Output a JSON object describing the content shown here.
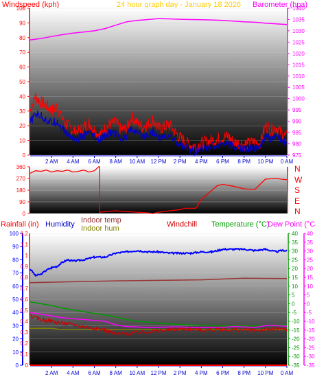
{
  "header": {
    "left_label": "Windspeed (kph)",
    "center_label": "24 hour graph day - January 18 2026",
    "right_label": "Barometer (hpa)"
  },
  "compass": [
    "N",
    "W",
    "S",
    "E",
    "N"
  ],
  "bottom_header": {
    "rainfall": "Rainfall (in)",
    "humidity": "Humidity",
    "indoor_temp": "Indoor temp",
    "indoor_hum": "Indoor hum",
    "windchill": "Windchill",
    "temperature": "Temperature (°C)",
    "dew_point": "Dew Point (°C)"
  },
  "colors": {
    "windspeed": "#ff0000",
    "wind_avg": "#0000cc",
    "barometer": "#ff00ff",
    "title": "#ffcc00",
    "direction": "#ff0000",
    "rain": "#ff0000",
    "humidity": "#0000ff",
    "indoor_temp": "#993333",
    "indoor_hum": "#808000",
    "windchill": "#cc0000",
    "temperature": "#009900",
    "dew_point": "#ff00ff"
  },
  "chart_data": [
    {
      "type": "line",
      "name": "wind-baro",
      "x_ticks": [
        "2 AM",
        "4 AM",
        "6 AM",
        "8 AM",
        "10 AM",
        "12 PM",
        "2 PM",
        "4 PM",
        "6 PM",
        "8 PM",
        "10 PM",
        "0 AM"
      ],
      "ylim_left": [
        0,
        100
      ],
      "yticks_left": [
        0,
        10,
        20,
        30,
        40,
        50,
        60,
        70,
        80,
        90,
        100
      ],
      "ylim_right": [
        975,
        1040
      ],
      "yticks_right": [
        975,
        980,
        985,
        990,
        995,
        1000,
        1005,
        1010,
        1015,
        1020,
        1025,
        1030,
        1035,
        1040
      ],
      "xlim_hours": [
        0,
        24
      ],
      "series": [
        {
          "name": "Windspeed (kph)",
          "color": "#ff0000",
          "axis": "left",
          "x": [
            0,
            0.5,
            1,
            1.5,
            2,
            2.5,
            3,
            3.5,
            4,
            4.5,
            5,
            5.5,
            6,
            6.5,
            7,
            7.5,
            8,
            8.5,
            9,
            9.5,
            10,
            10.5,
            11,
            11.5,
            12,
            12.5,
            13,
            13.5,
            14,
            14.5,
            15,
            15.5,
            16,
            16.5,
            17,
            17.5,
            18,
            18.5,
            19,
            19.5,
            20,
            20.5,
            21,
            21.5,
            22,
            22.5,
            23,
            23.5,
            24
          ],
          "y": [
            30,
            40,
            36,
            34,
            30,
            33,
            25,
            20,
            17,
            16,
            19,
            22,
            17,
            14,
            18,
            21,
            22,
            17,
            18,
            26,
            22,
            19,
            21,
            24,
            18,
            19,
            21,
            16,
            12,
            9,
            7,
            6,
            8,
            9,
            10,
            11,
            12,
            13,
            9,
            8,
            7,
            8,
            9,
            8,
            20,
            17,
            19,
            15,
            12
          ]
        },
        {
          "name": "avg",
          "color": "#0000cc",
          "axis": "left",
          "x": [
            0,
            0.5,
            1,
            1.5,
            2,
            2.5,
            3,
            3.5,
            4,
            4.5,
            5,
            5.5,
            6,
            6.5,
            7,
            7.5,
            8,
            8.5,
            9,
            9.5,
            10,
            10.5,
            11,
            11.5,
            12,
            12.5,
            13,
            13.5,
            14,
            14.5,
            15,
            15.5,
            16,
            16.5,
            17,
            17.5,
            18,
            18.5,
            19,
            19.5,
            20,
            20.5,
            21,
            21.5,
            22,
            22.5,
            23,
            23.5,
            24
          ],
          "y": [
            22,
            28,
            27,
            24,
            22,
            23,
            18,
            14,
            12,
            11,
            13,
            15,
            12,
            10,
            13,
            15,
            15,
            12,
            13,
            18,
            15,
            13,
            14,
            16,
            12,
            12,
            13,
            10,
            7,
            5,
            3,
            3,
            4,
            5,
            6,
            7,
            8,
            8,
            5,
            5,
            4,
            5,
            5,
            5,
            13,
            11,
            13,
            10,
            8
          ]
        },
        {
          "name": "Barometer (hpa)",
          "color": "#ff00ff",
          "axis": "right",
          "x": [
            0,
            1,
            2,
            3,
            4,
            5,
            6,
            7,
            8,
            9,
            10,
            11,
            12,
            13,
            14,
            15,
            16,
            17,
            18,
            19,
            20,
            21,
            22,
            23,
            24
          ],
          "y": [
            1026,
            1026.6,
            1027.5,
            1028.3,
            1029,
            1029.5,
            1030,
            1031,
            1032.5,
            1034,
            1034.6,
            1035,
            1035.4,
            1035.3,
            1035.1,
            1035,
            1034.9,
            1034.8,
            1034.6,
            1034.3,
            1034,
            1033.8,
            1033.4,
            1033.1,
            1032.8
          ]
        }
      ]
    },
    {
      "type": "line",
      "name": "direction",
      "ylim": [
        0,
        360
      ],
      "yticks": [
        0,
        90,
        180,
        270,
        360
      ],
      "xlim_hours": [
        0,
        24
      ],
      "series": [
        {
          "name": "Wind direction",
          "color": "#ff0000",
          "x": [
            0,
            0.5,
            1,
            1.5,
            2,
            2.5,
            3,
            3.5,
            4,
            4.5,
            5,
            5.5,
            6,
            6.4,
            6.5,
            7,
            8,
            9,
            10,
            11,
            11.5,
            12,
            13,
            14,
            14.5,
            15,
            15.5,
            16,
            17,
            17.5,
            18,
            19,
            20,
            21,
            22,
            23,
            24
          ],
          "y": [
            310,
            330,
            325,
            335,
            320,
            330,
            325,
            335,
            320,
            325,
            335,
            320,
            330,
            360,
            10,
            15,
            20,
            15,
            10,
            5,
            0,
            10,
            20,
            30,
            40,
            40,
            40,
            110,
            180,
            215,
            225,
            210,
            190,
            185,
            265,
            270,
            260
          ]
        }
      ]
    },
    {
      "type": "line",
      "name": "temp-hum",
      "rain_yticks": [
        "0",
        "0.1",
        "0.2",
        "0.3",
        "0.4",
        "0.5",
        "0.6",
        "0.7",
        "0.8",
        "0.9",
        "1",
        "1.1",
        "1.2"
      ],
      "rain_ylim": [
        0,
        1.2
      ],
      "hum_ylim": [
        0,
        100
      ],
      "hum_yticks": [
        "0",
        "10",
        "20",
        "30",
        "40",
        "50",
        "60",
        "70",
        "80",
        "90",
        "100"
      ],
      "temp_ylim": [
        -35,
        40
      ],
      "temp_yticks": [
        "-35",
        "-30",
        "-25",
        "-20",
        "-15",
        "-10",
        "-5",
        "0",
        "5",
        "10",
        "15",
        "20",
        "25",
        "30",
        "35",
        "40"
      ],
      "xlim_hours": [
        0,
        24
      ],
      "series": [
        {
          "name": "Humidity",
          "color": "#0000ff",
          "axis": "hum",
          "x": [
            0,
            0.5,
            1,
            1.5,
            2,
            2.5,
            3,
            3.5,
            4,
            5,
            6,
            7,
            8,
            9,
            10,
            11,
            12,
            13,
            14,
            15,
            16,
            17,
            18,
            19,
            20,
            21,
            22,
            22.5,
            23,
            23.5,
            24
          ],
          "y": [
            73,
            68,
            69,
            72,
            74,
            75,
            78,
            80,
            79,
            80,
            82,
            82,
            85,
            86,
            87,
            86,
            86,
            85,
            85,
            85,
            86,
            86,
            88,
            88,
            88,
            87,
            88,
            87,
            86,
            87,
            87
          ]
        },
        {
          "name": "Indoor temp",
          "color": "#993333",
          "axis": "temp",
          "x": [
            0,
            4,
            8,
            12,
            16,
            20,
            24
          ],
          "y": [
            12,
            12.5,
            13,
            13.3,
            13.6,
            14.5,
            14.3
          ]
        },
        {
          "name": "Indoor hum",
          "color": "#808000",
          "axis": "hum",
          "x": [
            0,
            1,
            2,
            3,
            4,
            5,
            6,
            7,
            8,
            9,
            10,
            11,
            12,
            13,
            14,
            15,
            16,
            17,
            18,
            19,
            20,
            21,
            22,
            23,
            24
          ],
          "y": [
            28,
            28,
            28,
            27,
            27,
            27,
            27,
            27,
            27,
            27,
            27,
            27,
            27,
            27,
            27,
            27,
            27,
            27,
            27,
            27,
            27,
            27,
            27,
            27,
            27
          ]
        },
        {
          "name": "Temperature (°C)",
          "color": "#009900",
          "axis": "temp",
          "x": [
            0,
            1,
            2,
            3,
            4,
            5,
            6,
            7,
            8,
            9,
            10,
            11,
            12,
            13,
            14,
            15,
            16,
            17,
            18,
            19,
            20,
            21,
            22,
            23,
            24
          ],
          "y": [
            1,
            0,
            -1,
            -2.5,
            -3.5,
            -4.5,
            -5.5,
            -6.5,
            -7.5,
            -9,
            -10,
            -10.5,
            -11,
            -11.5,
            -11.8,
            -12,
            -12.3,
            -12.5,
            -12.6,
            -12.7,
            -12.7,
            -12.6,
            -12.4,
            -12.2,
            -12
          ]
        },
        {
          "name": "Dew Point (°C)",
          "color": "#ff00ff",
          "axis": "temp",
          "x": [
            0,
            1,
            2,
            3,
            4,
            5,
            6,
            7,
            8,
            9,
            10,
            11,
            12,
            13,
            14,
            15,
            16,
            17,
            18,
            19,
            20,
            21,
            22,
            23,
            24
          ],
          "y": [
            -5,
            -6,
            -7,
            -8,
            -8.5,
            -9,
            -9.5,
            -10,
            -12,
            -13,
            -13.2,
            -13.5,
            -13.4,
            -13.3,
            -13.2,
            -13.5,
            -13.6,
            -13.5,
            -13.4,
            -13,
            -13.2,
            -13.5,
            -12.5,
            -12.5,
            -12.8
          ]
        },
        {
          "name": "Windchill",
          "color": "#cc0000",
          "axis": "temp",
          "x": [
            0,
            1,
            2,
            3,
            4,
            5,
            6,
            7,
            8,
            9,
            10,
            11,
            12,
            13,
            14,
            15,
            16,
            17,
            18,
            19,
            20,
            21,
            22,
            23,
            24
          ],
          "y": [
            -7,
            -9,
            -10,
            -11,
            -12,
            -13,
            -14,
            -15,
            -17.5,
            -17,
            -16.5,
            -16,
            -15.5,
            -15,
            -14.5,
            -14.5,
            -15,
            -15,
            -14.8,
            -15,
            -15,
            -15,
            -15,
            -14.5,
            -14.8
          ]
        },
        {
          "name": "Rainfall (in)",
          "color": "#ff0000",
          "axis": "rain",
          "x": [
            0,
            24
          ],
          "y": [
            0,
            0
          ]
        }
      ]
    }
  ]
}
